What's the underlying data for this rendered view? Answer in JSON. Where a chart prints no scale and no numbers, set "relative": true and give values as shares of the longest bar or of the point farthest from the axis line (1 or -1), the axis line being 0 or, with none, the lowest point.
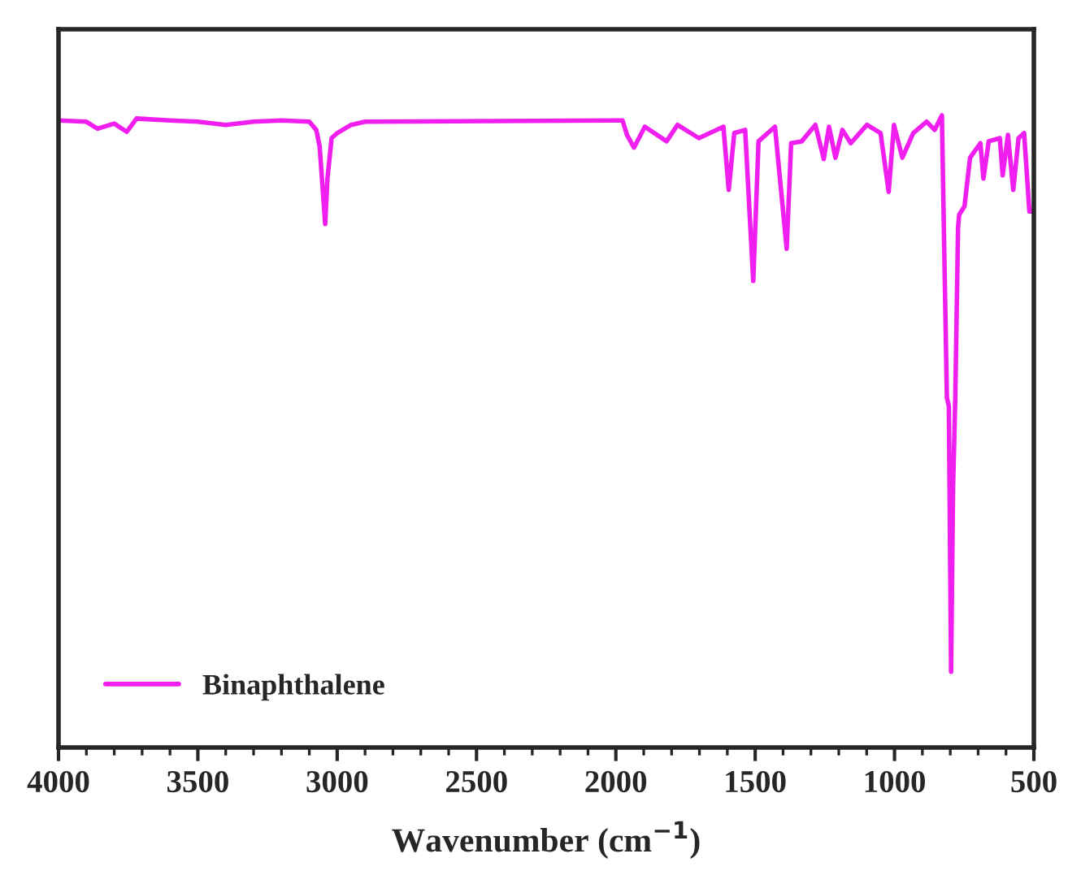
{
  "chart_data": {
    "type": "line",
    "relative": true,
    "xlabel": "Wavenumber (cm$^{−1}$)",
    "xlim": [
      4000,
      500
    ],
    "xticks": [
      4000,
      3500,
      3000,
      2500,
      2000,
      1500,
      1000,
      500
    ],
    "legend": "bottom left",
    "grid": false,
    "line_style": "solid",
    "marker": "none",
    "series": [
      {
        "name": "Binaphthalene",
        "color": "#f01ff0",
        "x": [
          4000,
          3900,
          3860,
          3800,
          3755,
          3720,
          3600,
          3500,
          3400,
          3300,
          3200,
          3100,
          3075,
          3063,
          3043,
          3035,
          3020,
          3000,
          2950,
          2900,
          2000,
          1976,
          1960,
          1935,
          1896,
          1818,
          1779,
          1702,
          1614,
          1595,
          1575,
          1536,
          1507,
          1488,
          1429,
          1387,
          1371,
          1333,
          1284,
          1254,
          1235,
          1212,
          1187,
          1157,
          1099,
          1050,
          1021,
          1002,
          972,
          933,
          885,
          856,
          830,
          822,
          812,
          805,
          797,
          790,
          782,
          772,
          768,
          749,
          729,
          692,
          681,
          662,
          622,
          612,
          593,
          574,
          555,
          535,
          516,
          500
        ],
        "values": [
          0.992,
          0.99,
          0.979,
          0.987,
          0.974,
          0.995,
          0.992,
          0.99,
          0.985,
          0.99,
          0.992,
          0.99,
          0.977,
          0.951,
          0.828,
          0.9,
          0.964,
          0.972,
          0.985,
          0.99,
          0.992,
          0.992,
          0.969,
          0.949,
          0.982,
          0.959,
          0.985,
          0.964,
          0.982,
          0.882,
          0.972,
          0.977,
          0.738,
          0.959,
          0.982,
          0.789,
          0.956,
          0.959,
          0.985,
          0.931,
          0.982,
          0.933,
          0.977,
          0.956,
          0.985,
          0.972,
          0.879,
          0.985,
          0.933,
          0.972,
          0.99,
          0.977,
          1.0,
          0.797,
          0.553,
          0.54,
          0.12,
          0.411,
          0.553,
          0.823,
          0.843,
          0.856,
          0.933,
          0.956,
          0.9,
          0.959,
          0.964,
          0.905,
          0.969,
          0.882,
          0.964,
          0.972,
          0.848,
          0.848
        ]
      }
    ]
  }
}
